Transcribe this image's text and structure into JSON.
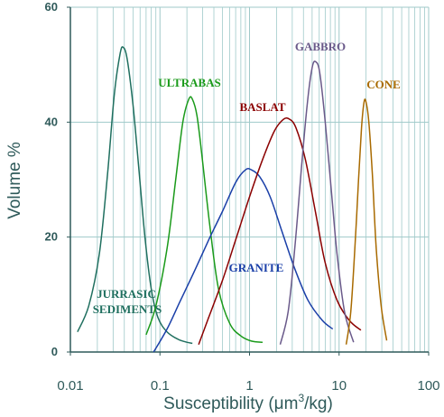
{
  "chart_data": {
    "type": "line",
    "xlabel_main": "Susceptibility (",
    "xlabel_mu": "μ",
    "xlabel_m": "m",
    "xlabel_sup": "3",
    "xlabel_tail": "/kg)",
    "ylabel": "Volume %",
    "x_scale": "log",
    "xlim": [
      0.01,
      100
    ],
    "ylim": [
      0,
      60
    ],
    "x_ticks": [
      "0.01",
      "0.1",
      "1",
      "10",
      "100"
    ],
    "y_ticks": [
      "0",
      "20",
      "40",
      "60"
    ],
    "grid": true,
    "colors": {
      "grid": "#9fc9c9",
      "axis": "#2f5a5a",
      "axis_text": "#2f5a5a"
    },
    "series": [
      {
        "name": "JURRASIC SEDIMENTS",
        "label_lines": [
          "JURRASIC",
          "SEDIMENTS"
        ],
        "color": "#1f6f5f",
        "x": [
          0.012,
          0.016,
          0.021,
          0.026,
          0.031,
          0.036,
          0.039,
          0.043,
          0.05,
          0.058,
          0.068,
          0.08,
          0.095,
          0.12,
          0.16,
          0.2,
          0.23
        ],
        "y": [
          3.5,
          8,
          17,
          31,
          45,
          52,
          53,
          51,
          43,
          32,
          20,
          11,
          6,
          3.5,
          2.2,
          1.7,
          1.5
        ]
      },
      {
        "name": "ULTRABAS",
        "label_lines": [
          "ULTRABAS"
        ],
        "color": "#1a9a1a",
        "x": [
          0.07,
          0.09,
          0.12,
          0.15,
          0.18,
          0.21,
          0.23,
          0.26,
          0.3,
          0.36,
          0.45,
          0.6,
          0.8,
          1.05,
          1.4
        ],
        "y": [
          3,
          8,
          18,
          30,
          40,
          44,
          44,
          41,
          33,
          22,
          11,
          5,
          2.8,
          1.9,
          1.7
        ]
      },
      {
        "name": "GRANITE",
        "label_lines": [
          "GRANITE"
        ],
        "color": "#1a3fa8",
        "x": [
          0.085,
          0.12,
          0.17,
          0.25,
          0.35,
          0.5,
          0.7,
          0.9,
          1.05,
          1.3,
          1.7,
          2.3,
          3.2,
          4.5,
          6.5,
          8.5
        ],
        "y": [
          0,
          4,
          9,
          14.5,
          19.5,
          24.5,
          29.5,
          31.7,
          31.7,
          30.5,
          27,
          21,
          14.5,
          9,
          5.5,
          4
        ]
      },
      {
        "name": "BASLAT",
        "label_lines": [
          "BASLAT"
        ],
        "color": "#8b0000",
        "x": [
          0.27,
          0.35,
          0.5,
          0.7,
          1,
          1.4,
          1.9,
          2.4,
          2.8,
          3.3,
          4.2,
          5.5,
          7,
          9.5,
          13,
          17.5
        ],
        "y": [
          1.3,
          6,
          12.5,
          19.5,
          27,
          33.5,
          38.5,
          40.5,
          40.5,
          39,
          33.5,
          24,
          15.5,
          9,
          5.5,
          3.8
        ]
      },
      {
        "name": "GABBRO",
        "label_lines": [
          "GABBRO"
        ],
        "color": "#6a5a8a",
        "x": [
          2.2,
          2.7,
          3.2,
          3.8,
          4.4,
          5,
          5.5,
          6.1,
          7,
          8.2,
          9.5,
          11.5,
          14.5
        ],
        "y": [
          1.3,
          7,
          18,
          32,
          43,
          49.5,
          50.5,
          48.5,
          40,
          28,
          17,
          7,
          1.7
        ]
      },
      {
        "name": "CONE",
        "label_lines": [
          "CONE"
        ],
        "color": "#a86a00",
        "x": [
          12,
          13.5,
          15,
          16.5,
          17.8,
          19,
          20,
          21.5,
          23.5,
          26,
          29.5,
          34
        ],
        "y": [
          1.3,
          7,
          18,
          30,
          39,
          43.5,
          43.5,
          40,
          31,
          18,
          8,
          2
        ]
      }
    ]
  }
}
